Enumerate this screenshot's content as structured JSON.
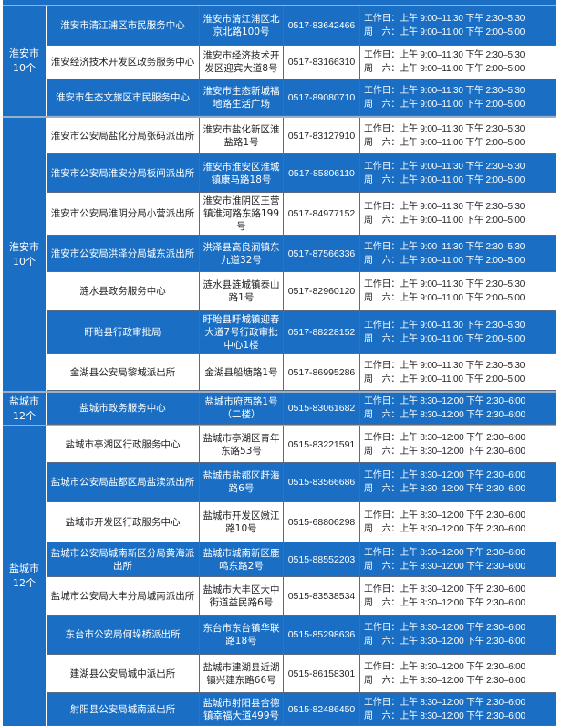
{
  "colors": {
    "row_blue": "#1a6fc4",
    "row_white": "#ffffff"
  },
  "groups": [
    {
      "city": "淮安市\n10个",
      "rows": [
        {
          "name": "淮安市清江浦区市民服务中心",
          "address": "淮安市清江浦区北京北路100号",
          "phone": "0517-83642466",
          "weekday": "工作日：上午 9:00–11:30 下午 2:30–5:30",
          "saturday": "周　六：上午 9:00–11:00 下午 2:00–5:00"
        },
        {
          "name": "淮安经济技术开发区政务服务中心",
          "address": "淮安市经济技术开发区迎宾大道8号",
          "phone": "0517-83166310",
          "weekday": "工作日：上午 9:00–11:30 下午 2:30–5:30",
          "saturday": "周　六：上午 9:00–11:00 下午 2:00–5:00"
        },
        {
          "name": "淮安市生态文旅区市民服务中心",
          "address": "淮安市生态新城福地路生活广场",
          "phone": "0517-89080710",
          "weekday": "工作日：上午 9:00–11:30 下午 2:30–5:30",
          "saturday": "周　六：上午 9:00–11:00 下午 2:00–5:00"
        }
      ]
    },
    {
      "city": "淮安市\n10个",
      "rows": [
        {
          "name": "淮安市公安局盐化分局张码派出所",
          "address": "淮安市盐化新区淮盐路1号",
          "phone": "0517-83127910",
          "weekday": "工作日：上午 9:00–11:30 下午 2:30–5:30",
          "saturday": "周　六：上午 9:00–11:00 下午 2:00–5:00"
        },
        {
          "name": "淮安市公安局淮安分局板闸派出所",
          "address": "淮安市淮安区淮城镇康马路18号",
          "phone": "0517-85806110",
          "weekday": "工作日：上午 9:00–11:30 下午 2:30–5:30",
          "saturday": "周　六：上午 9:00–11:00 下午 2:00–5:00"
        },
        {
          "name": "淮安市公安局淮阴分局小营派出所",
          "address": "淮安市淮阴区王营镇淮河路东路199号",
          "phone": "0517-84977152",
          "weekday": "工作日：上午 9:00–11:30 下午 2:30–5:30",
          "saturday": "周　六：上午 9:00–11:00 下午 2:00–5:00"
        },
        {
          "name": "淮安市公安局洪泽分局城东派出所",
          "address": "洪泽县高良涧镇东九道32号",
          "phone": "0517-87566336",
          "weekday": "工作日：上午 9:00–11:30 下午 2:30–5:30",
          "saturday": "周　六：上午 9:00–11:00 下午 2:00–5:00"
        },
        {
          "name": "涟水县政务服务中心",
          "address": "涟水县涟城镇泰山路1号",
          "phone": "0517-82960120",
          "weekday": "工作日：上午 9:00–11:30 下午 2:30–5:30",
          "saturday": "周　六：上午 9:00–11:00 下午 2:00–5:00"
        },
        {
          "name": "盱眙县行政审批局",
          "address": "盱眙县盱城镇迎春大道7号行政审批中心1楼",
          "phone": "0517-88228152",
          "weekday": "工作日：上午 9:00–11:30 下午 2:30–5:30",
          "saturday": "周　六：上午 9:00–11:00 下午 2:00–5:00"
        },
        {
          "name": "金湖县公安局黎城派出所",
          "address": "金湖县船塘路1号",
          "phone": "0517-86995286",
          "weekday": "工作日：上午 9:00–11:30 下午 2:30–5:30",
          "saturday": "周　六：上午 9:00–11:00 下午 2:00–5:00"
        }
      ]
    },
    {
      "city": "盐城市\n12个",
      "rows": [
        {
          "name": "盐城市政务服务中心",
          "address": "盐城市府西路1号（二楼）",
          "phone": "0515-83061682",
          "weekday": "工作日：上午 8:30–12:00 下午 2:30–6:00",
          "saturday": "周　六：上午 8:30–12:00 下午 2:30–6:00"
        }
      ]
    },
    {
      "city": "盐城市\n12个",
      "rows": [
        {
          "name": "盐城市亭湖区行政服务中心",
          "address": "盐城市亭湖区青年东路53号",
          "phone": "0515-83221591",
          "weekday": "工作日：上午 8:30–12:00 下午 2:30–6:00",
          "saturday": "周　六：上午 8:30–12:00 下午 2:30–6:00"
        },
        {
          "name": "盐城市公安局盐都区局盐渎派出所",
          "address": "盐城市盐都区赶海路6号",
          "phone": "0515-83566686",
          "weekday": "工作日：上午 8:30–12:00 下午 2:30–6:00",
          "saturday": "周　六：上午 8:30–12:00 下午 2:30–6:00"
        },
        {
          "name": "盐城市开发区行政服务中心",
          "address": "盐城市开发区嫩江路10号",
          "phone": "0515-68806298",
          "weekday": "工作日：上午 8:30–12:00 下午 2:30–6:00",
          "saturday": "周　六：上午 8:30–12:00 下午 2:30–6:00"
        },
        {
          "name": "盐城市公安局城南新区分局黄海派出所",
          "address": "盐城市城南新区鹿鸣东路2号",
          "phone": "0515-88552203",
          "weekday": "工作日：上午 8:30–12:00 下午 2:30–6:00",
          "saturday": "周　六：上午 8:30–12:00 下午 2:30–6:00"
        },
        {
          "name": "盐城市公安局大丰分局城南派出所",
          "address": "盐城市大丰区大中街道益民路6号",
          "phone": "0515-83538534",
          "weekday": "工作日：上午 8:30–12:00 下午 2:30–6:00",
          "saturday": "周　六：上午 8:30–12:00 下午 2:30–6:00"
        },
        {
          "name": "东台市公安局何垛桥派出所",
          "address": "东台市东台镇华联路18号",
          "phone": "0515-85298636",
          "weekday": "工作日：上午 8:30–12:00 下午 2:30–6:00",
          "saturday": "周　六：上午 8:30–12:00 下午 2:30–6:00"
        },
        {
          "name": "建湖县公安局城中派出所",
          "address": "盐城市建湖县近湖镇兴建东路66号",
          "phone": "0515-86158301",
          "weekday": "工作日：上午 8:30–12:00 下午 2:30–6:00",
          "saturday": "周　六：上午 8:30–12:00 下午 2:30–6:00"
        },
        {
          "name": "射阳县公安局城南派出所",
          "address": "盐城市射阳县合德镇幸福大道499号",
          "phone": "0515-82486450",
          "weekday": "工作日：上午 8:30–12:00 下午 2:30–6:00",
          "saturday": "周　六：上午 8:30–12:00 下午 2:30–6:00"
        }
      ]
    }
  ]
}
